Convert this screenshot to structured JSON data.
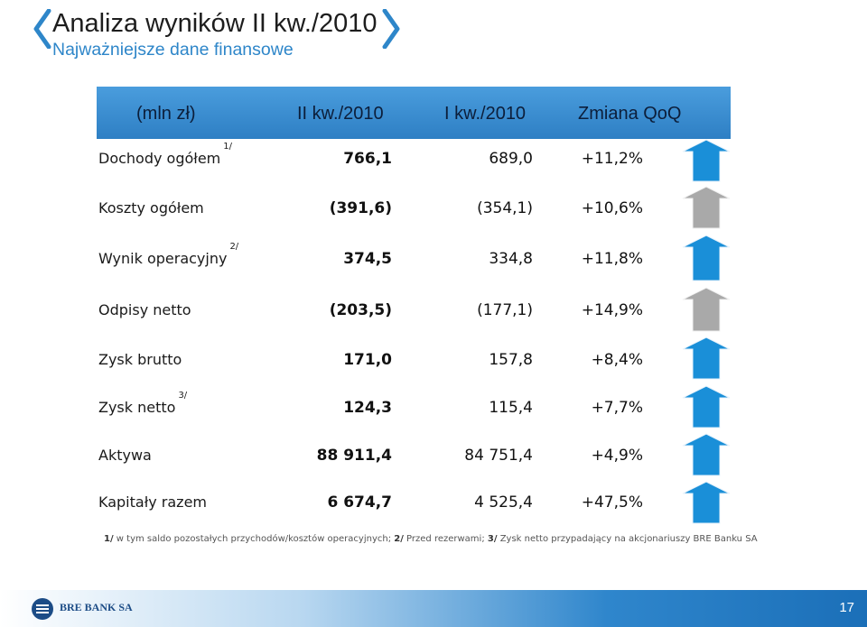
{
  "slide": {
    "title": "Analiza wyników II kw./2010",
    "subtitle": "Najważniejsze dane finansowe",
    "page_number": "17"
  },
  "table": {
    "headers": {
      "unit": "(mln zł)",
      "col1": "II kw./2010",
      "col2": "I kw./2010",
      "col3": "Zmiana QoQ"
    },
    "rows": [
      {
        "label": "Dochody ogółem",
        "note": "1/",
        "current": "766,1",
        "previous": "689,0",
        "change": "+11,2%",
        "trend": "up-blue"
      },
      {
        "label": "Koszty ogółem",
        "note": "",
        "current": "(391,6)",
        "previous": "(354,1)",
        "change": "+10,6%",
        "trend": "up-gray"
      },
      {
        "label": "Wynik operacyjny",
        "note": "2/",
        "current": "374,5",
        "previous": "334,8",
        "change": "+11,8%",
        "trend": "up-blue"
      },
      {
        "label": "Odpisy netto",
        "note": "",
        "current": "(203,5)",
        "previous": "(177,1)",
        "change": "+14,9%",
        "trend": "up-gray"
      },
      {
        "label": "Zysk brutto",
        "note": "",
        "current": "171,0",
        "previous": "157,8",
        "change": "+8,4%",
        "trend": "up-blue"
      },
      {
        "label": "Zysk netto",
        "note": "3/",
        "current": "124,3",
        "previous": "115,4",
        "change": "+7,7%",
        "trend": "up-blue"
      },
      {
        "label": "Aktywa",
        "note": "",
        "current": "88 911,4",
        "previous": "84 751,4",
        "change": "+4,9%",
        "trend": "up-blue"
      },
      {
        "label": "Kapitały razem",
        "note": "",
        "current": "6 674,7",
        "previous": "4 525,4",
        "change": "+47,5%",
        "trend": "up-blue"
      }
    ]
  },
  "footnote": {
    "n1": "1/",
    "t1": " w tym saldo pozostałych przychodów/kosztów operacyjnych; ",
    "n2": "2/",
    "t2": " Przed rezerwami; ",
    "n3": "3/",
    "t3": " Zysk netto przypadający na akcjonariuszy BRE Banku SA"
  },
  "branding": {
    "bank_name": "BRE BANK SA"
  },
  "colors": {
    "accent_blue": "#2e86c9",
    "arrow_blue": "#1a8fd8",
    "arrow_gray": "#a9a9a9"
  }
}
